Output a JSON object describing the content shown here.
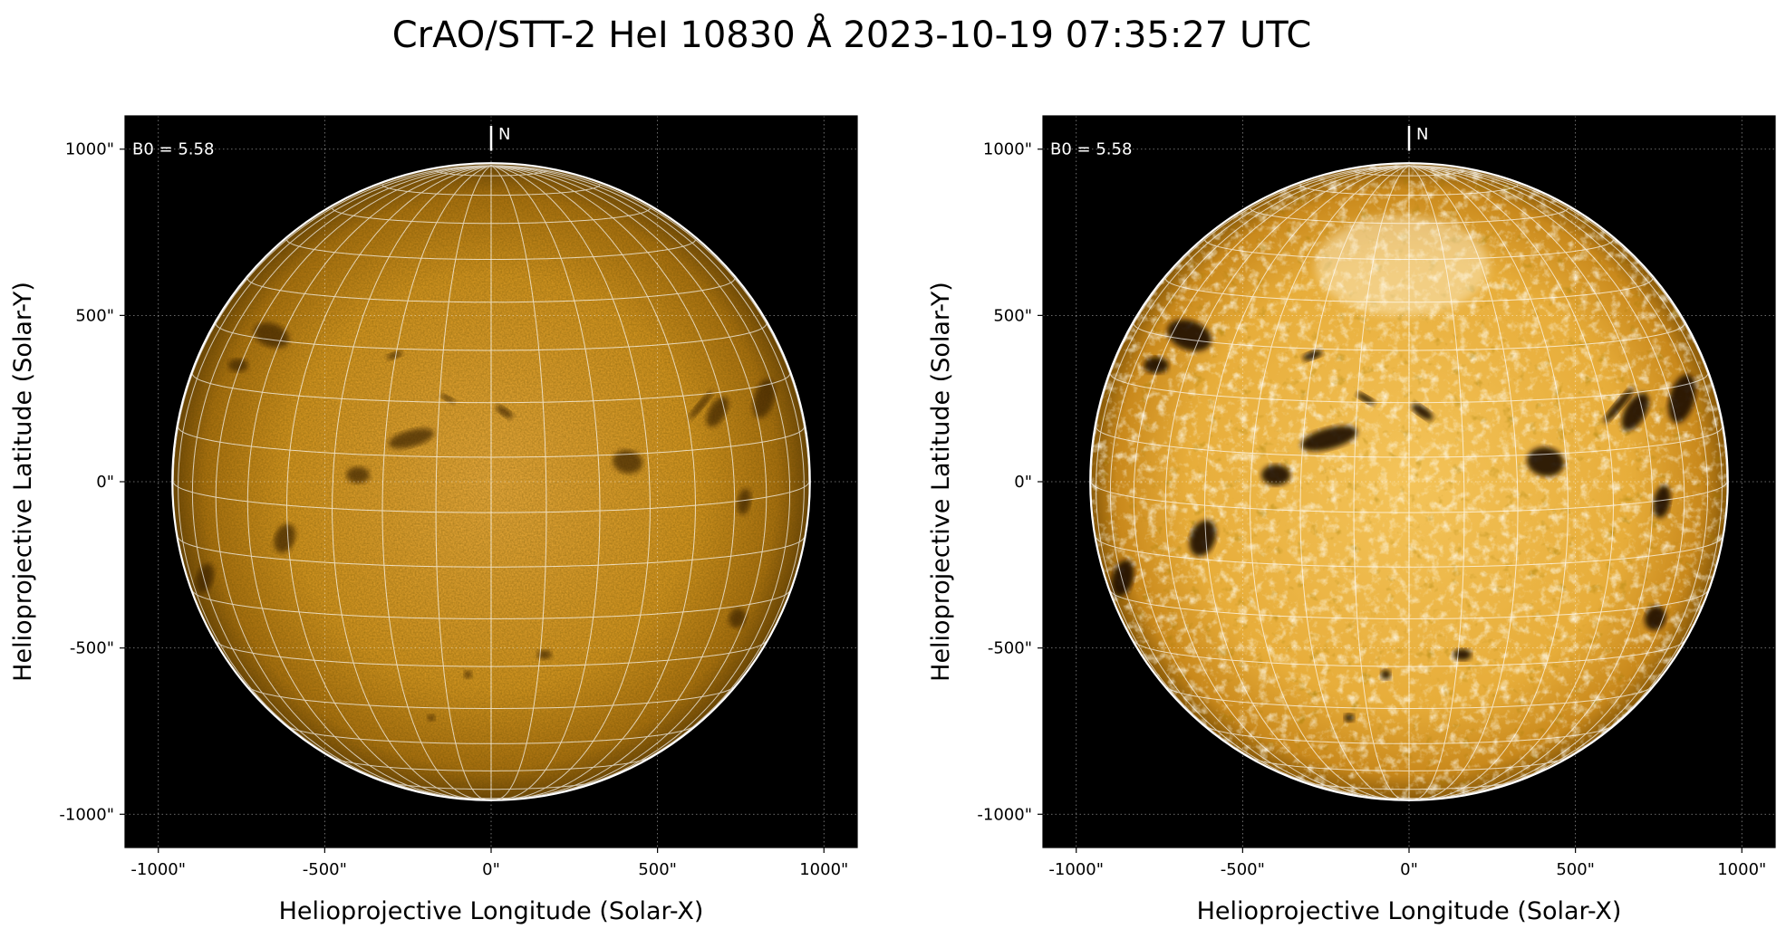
{
  "figure": {
    "title": "CrAO/STT-2 HeI 10830 Å 2023-10-19 07:35:27 UTC"
  },
  "colors": {
    "background": "#000000",
    "disk_base": "#c98a1c",
    "disk_bright": "#f5c860",
    "grid": "#ffffff"
  },
  "chart_data": [
    {
      "type": "image",
      "name": "",
      "xlabel": "Helioprojective Longitude (Solar-X)",
      "ylabel": "Helioprojective Latitude (Solar-Y)",
      "xlim": [
        -1100,
        1100
      ],
      "ylim": [
        -1100,
        1100
      ],
      "x_ticks": [
        -1000,
        -500,
        0,
        500,
        1000
      ],
      "y_ticks": [
        -1000,
        -500,
        0,
        500,
        1000
      ],
      "x_tick_labels": [
        "-1000\"",
        "-500\"",
        "0\"",
        "500\"",
        "1000\""
      ],
      "y_tick_labels": [
        "-1000\"",
        "-500\"",
        "0\"",
        "500\"",
        "1000\""
      ],
      "grid": true,
      "annotation_b0": "B0 = 5.58",
      "north_label": "N",
      "solar_radius_arcsec": 955,
      "stonyhurst_grid": true,
      "contrast": "normal"
    },
    {
      "type": "image",
      "name": "",
      "xlabel": "Helioprojective Longitude (Solar-X)",
      "ylabel": "Helioprojective Latitude (Solar-Y)",
      "xlim": [
        -1100,
        1100
      ],
      "ylim": [
        -1100,
        1100
      ],
      "x_ticks": [
        -1000,
        -500,
        0,
        500,
        1000
      ],
      "y_ticks": [
        -1000,
        -500,
        0,
        500,
        1000
      ],
      "x_tick_labels": [
        "-1000\"",
        "-500\"",
        "0\"",
        "500\"",
        "1000\""
      ],
      "y_tick_labels": [
        "-1000\"",
        "-500\"",
        "0\"",
        "500\"",
        "1000\""
      ],
      "grid": true,
      "annotation_b0": "B0 = 5.58",
      "north_label": "N",
      "solar_radius_arcsec": 955,
      "stonyhurst_grid": true,
      "contrast": "enhanced"
    }
  ]
}
